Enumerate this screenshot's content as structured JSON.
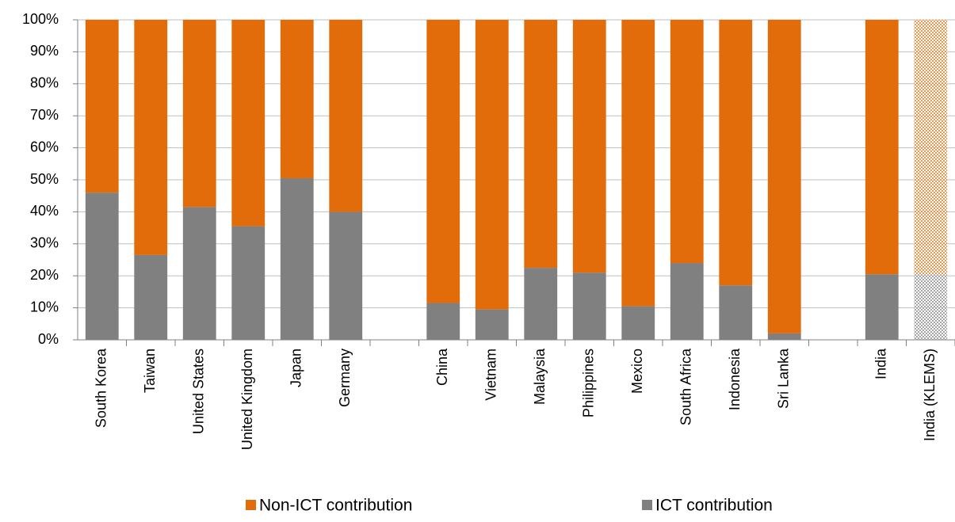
{
  "chart_data": {
    "type": "stacked_bar",
    "categories": [
      "South Korea",
      "Taiwan",
      "United States",
      "United Kingdom",
      "Japan",
      "Germany",
      null,
      "China",
      "Vietnam",
      "Malaysia",
      "Philippines",
      "Mexico",
      "South Africa",
      "Indonesia",
      "Sri Lanka",
      null,
      "India",
      "India (KLEMS)"
    ],
    "series": [
      {
        "name": "Non-ICT contribution",
        "color": "#e36c0a",
        "values": [
          54,
          73.5,
          58.5,
          64.5,
          49.5,
          60,
          null,
          88.5,
          90.5,
          77.5,
          79,
          89.5,
          76,
          83,
          98,
          null,
          79.5,
          79.5
        ]
      },
      {
        "name": "ICT contribution",
        "color": "#808080",
        "values": [
          46,
          26.5,
          41.5,
          35.5,
          50.5,
          40,
          null,
          11.5,
          9.5,
          22.5,
          21,
          10.5,
          24,
          17,
          2,
          null,
          20.5,
          20.5
        ]
      }
    ],
    "hatched": [
      false,
      false,
      false,
      false,
      false,
      false,
      false,
      false,
      false,
      false,
      false,
      false,
      false,
      false,
      false,
      false,
      false,
      true
    ],
    "ylim": [
      0,
      100
    ],
    "yticks": [
      {
        "value": 0,
        "label": "0%"
      },
      {
        "value": 10,
        "label": "10%"
      },
      {
        "value": 20,
        "label": "20%"
      },
      {
        "value": 30,
        "label": "30%"
      },
      {
        "value": 40,
        "label": "40%"
      },
      {
        "value": 50,
        "label": "50%"
      },
      {
        "value": 60,
        "label": "60%"
      },
      {
        "value": 70,
        "label": "70%"
      },
      {
        "value": 80,
        "label": "80%"
      },
      {
        "value": 90,
        "label": "90%"
      },
      {
        "value": 100,
        "label": "100%"
      }
    ],
    "grid": true,
    "legend": "bottom"
  }
}
